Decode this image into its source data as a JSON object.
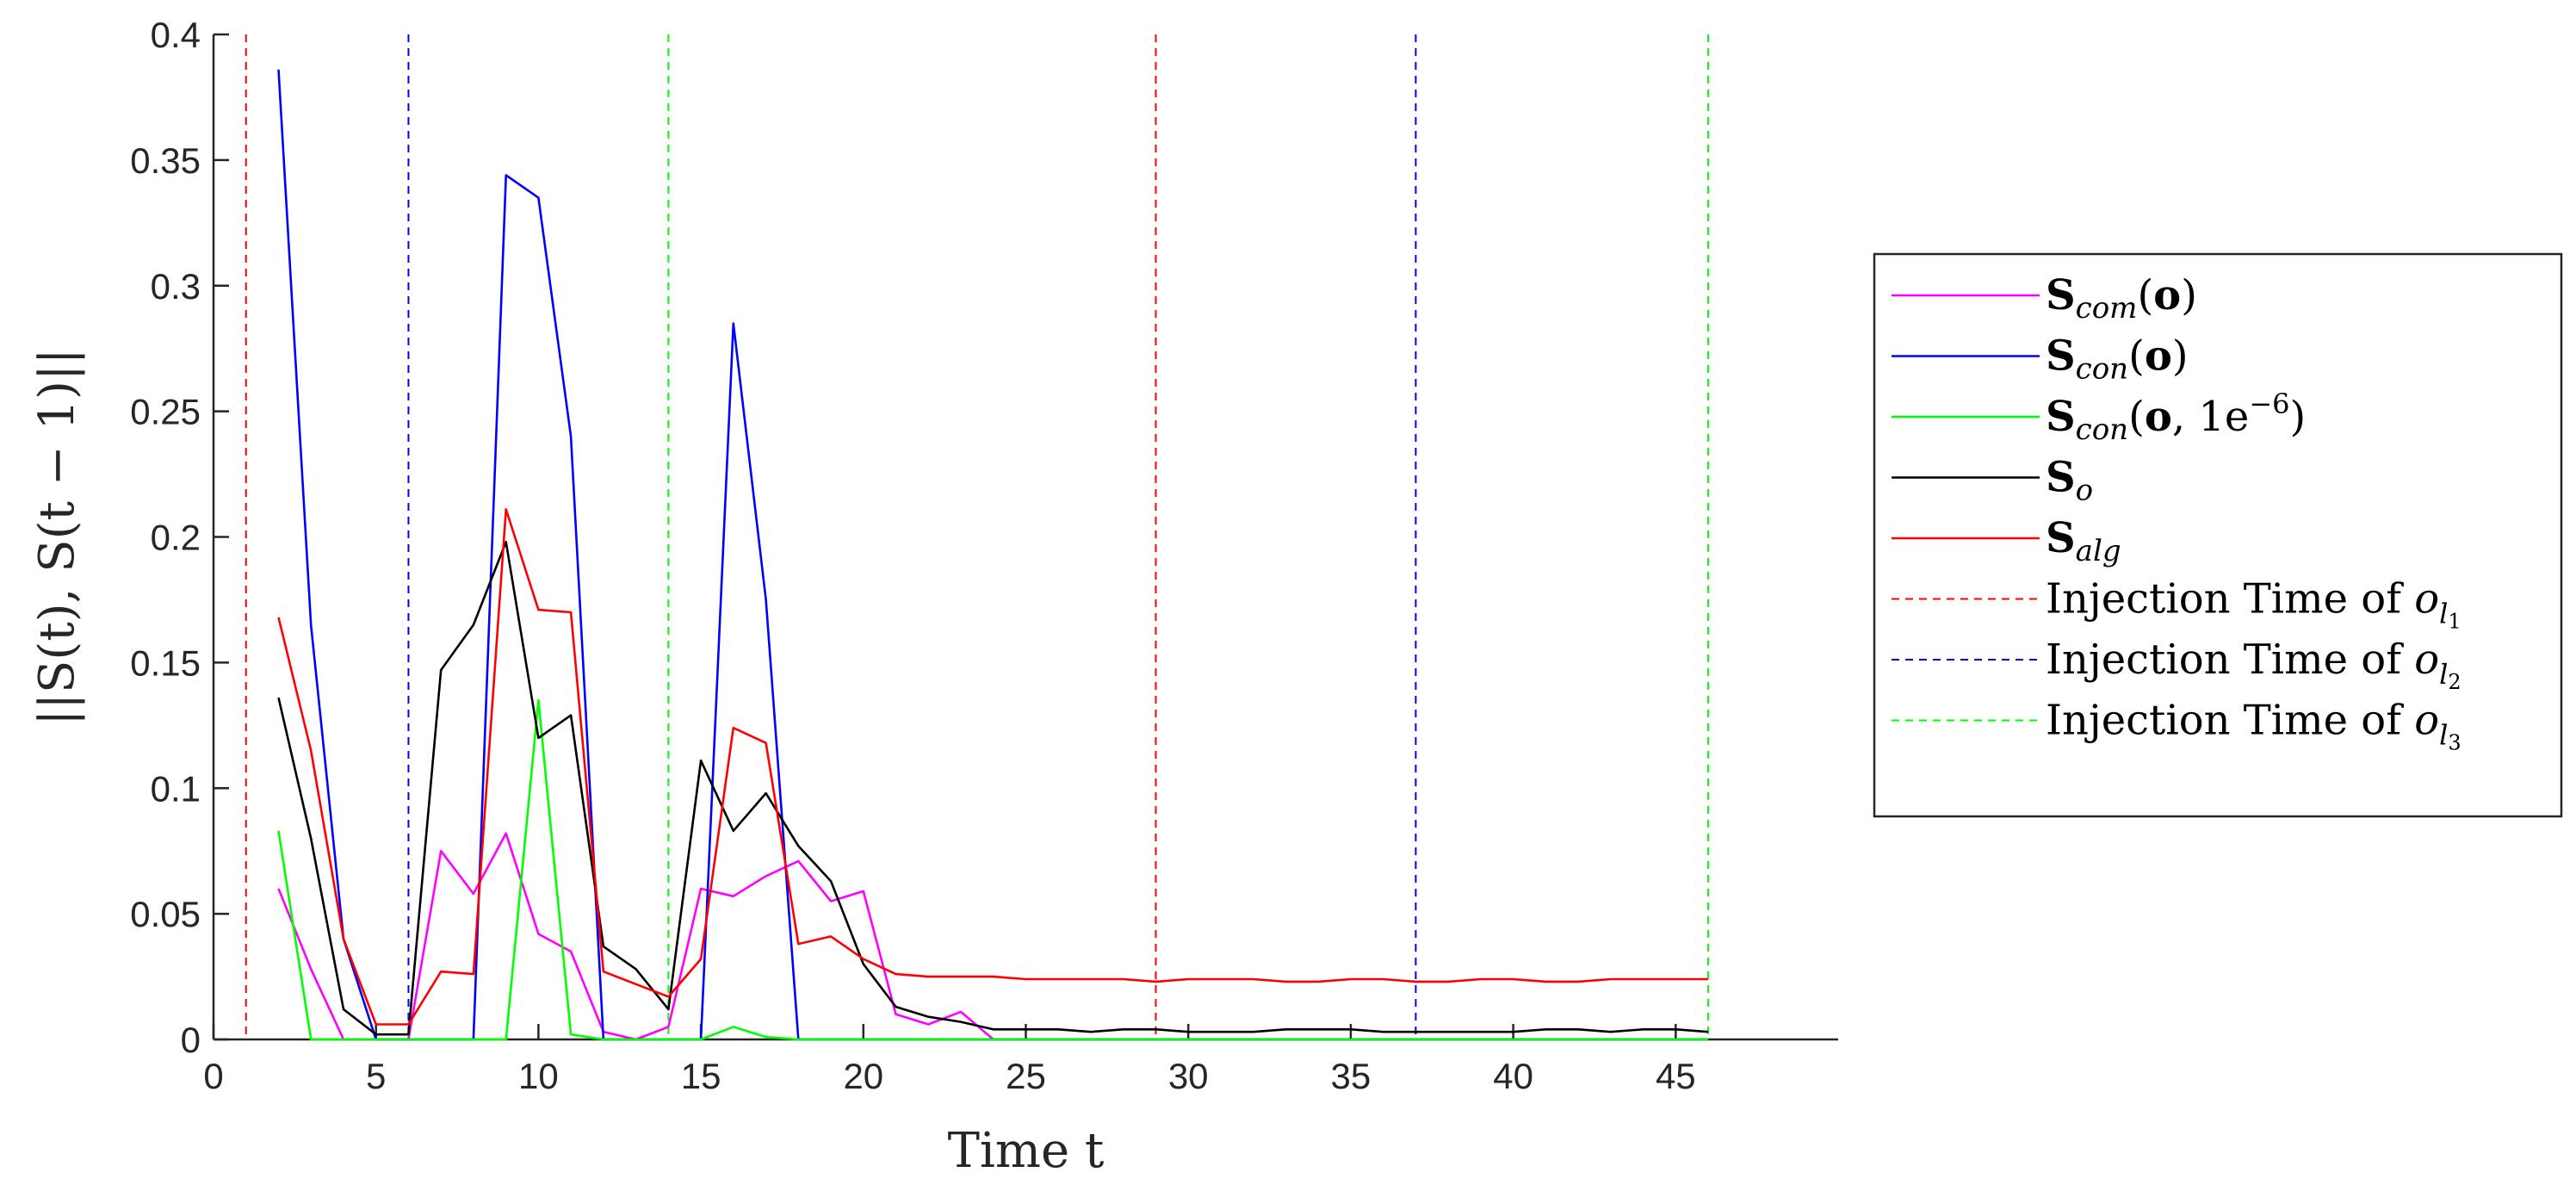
{
  "chart_data": {
    "type": "line",
    "xlabel": "Time t",
    "ylabel": "||S(t), S(t − 1)||",
    "xlim": [
      0,
      50
    ],
    "ylim": [
      0,
      0.4
    ],
    "xticks": [
      0,
      5,
      10,
      15,
      20,
      25,
      30,
      35,
      40,
      45
    ],
    "yticks": [
      0,
      0.05,
      0.1,
      0.15,
      0.2,
      0.25,
      0.3,
      0.35,
      0.4
    ],
    "ytick_labels": [
      "0",
      "0.05",
      "0.1",
      "0.15",
      "0.2",
      "0.25",
      "0.3",
      "0.35",
      "0.4"
    ],
    "grid": false,
    "legend_placement": "outside-right",
    "x": [
      2,
      3,
      4,
      5,
      6,
      7,
      8,
      9,
      10,
      11,
      12,
      13,
      14,
      15,
      16,
      17,
      18,
      19,
      20,
      21,
      22,
      23,
      24,
      25,
      26,
      27,
      28,
      29,
      30,
      31,
      32,
      33,
      34,
      35,
      36,
      37,
      38,
      39,
      40,
      41,
      42,
      43,
      44,
      45,
      46
    ],
    "series": [
      {
        "name": "S_com(o)",
        "legend_main": "S",
        "legend_sub": "com",
        "legend_tail": "(o)",
        "color": "#ff00ff",
        "values": [
          0.06,
          0.028,
          0,
          0,
          0,
          0.075,
          0.058,
          0.082,
          0.042,
          0.035,
          0.003,
          0,
          0.005,
          0.06,
          0.057,
          0.065,
          0.071,
          0.055,
          0.059,
          0.01,
          0.006,
          0.011,
          0,
          0,
          0,
          0,
          0,
          0,
          0,
          0,
          0,
          0,
          0,
          0,
          0,
          0,
          0,
          0,
          0,
          0,
          0,
          0,
          0,
          0,
          0
        ]
      },
      {
        "name": "S_con(o)",
        "legend_main": "S",
        "legend_sub": "con",
        "legend_tail": "(o)",
        "color": "#0000ff",
        "values": [
          0.386,
          0.165,
          0.04,
          0,
          0,
          0,
          0,
          0.344,
          0.335,
          0.24,
          0,
          0,
          0,
          0,
          0.285,
          0.175,
          0,
          0,
          0,
          0,
          0,
          0,
          0,
          0,
          0,
          0,
          0,
          0,
          0,
          0,
          0,
          0,
          0,
          0,
          0,
          0,
          0,
          0,
          0,
          0,
          0,
          0,
          0,
          0,
          0
        ]
      },
      {
        "name": "S_con(o, 1e−6)",
        "legend_main": "S",
        "legend_sub": "con",
        "legend_tail": "(o, 1e",
        "legend_sup": "−6",
        "legend_close": ")",
        "color": "#00ff00",
        "values": [
          0.083,
          0,
          0,
          0,
          0,
          0,
          0,
          0,
          0.135,
          0.002,
          0,
          0,
          0,
          0,
          0.005,
          0.001,
          0,
          0,
          0,
          0,
          0,
          0,
          0,
          0,
          0,
          0,
          0,
          0,
          0,
          0,
          0,
          0,
          0,
          0,
          0,
          0,
          0,
          0,
          0,
          0,
          0,
          0,
          0,
          0,
          0
        ]
      },
      {
        "name": "S_o",
        "legend_main": "S",
        "legend_sub": "o",
        "legend_tail": "",
        "color": "#000000",
        "values": [
          0.136,
          0.08,
          0.012,
          0.002,
          0.002,
          0.147,
          0.165,
          0.198,
          0.12,
          0.129,
          0.037,
          0.028,
          0.012,
          0.111,
          0.083,
          0.098,
          0.077,
          0.063,
          0.03,
          0.013,
          0.009,
          0.007,
          0.004,
          0.004,
          0.004,
          0.003,
          0.004,
          0.004,
          0.003,
          0.003,
          0.003,
          0.004,
          0.004,
          0.004,
          0.003,
          0.003,
          0.003,
          0.003,
          0.003,
          0.004,
          0.004,
          0.003,
          0.004,
          0.004,
          0.003
        ]
      },
      {
        "name": "S_alg",
        "legend_main": "S",
        "legend_sub": "alg",
        "legend_tail": "",
        "color": "#ff0000",
        "values": [
          0.168,
          0.115,
          0.04,
          0.006,
          0.006,
          0.027,
          0.026,
          0.211,
          0.171,
          0.17,
          0.027,
          0.022,
          0.017,
          0.032,
          0.124,
          0.118,
          0.038,
          0.041,
          0.032,
          0.026,
          0.025,
          0.025,
          0.025,
          0.024,
          0.024,
          0.024,
          0.024,
          0.023,
          0.024,
          0.024,
          0.024,
          0.023,
          0.023,
          0.024,
          0.024,
          0.023,
          0.023,
          0.024,
          0.024,
          0.023,
          0.023,
          0.024,
          0.024,
          0.024,
          0.024
        ]
      }
    ],
    "vlines": [
      {
        "name": "Injection Time of o_l1",
        "legend_text": "Injection Time of ",
        "legend_main": "o",
        "legend_sub": "l",
        "legend_subsub": "1",
        "color": "#ff0000",
        "x": [
          1,
          29
        ]
      },
      {
        "name": "Injection Time of o_l2",
        "legend_text": "Injection Time of ",
        "legend_main": "o",
        "legend_sub": "l",
        "legend_subsub": "2",
        "color": "#0000ff",
        "x": [
          6,
          37
        ]
      },
      {
        "name": "Injection Time of o_l3",
        "legend_text": "Injection Time of ",
        "legend_main": "o",
        "legend_sub": "l",
        "legend_subsub": "3",
        "color": "#00ff00",
        "x": [
          14,
          46
        ]
      }
    ]
  }
}
